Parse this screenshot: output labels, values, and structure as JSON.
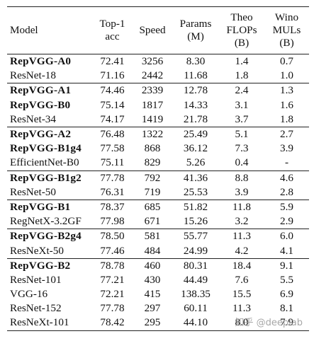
{
  "table": {
    "headers": {
      "model": "Model",
      "top1": [
        "Top-1",
        "acc"
      ],
      "speed": "Speed",
      "params": [
        "Params",
        "(M)"
      ],
      "flops": [
        "Theo",
        "FLOPs",
        "(B)"
      ],
      "mul": [
        "Wino",
        "MULs",
        "(B)"
      ]
    },
    "groups": [
      [
        {
          "model": "RepVGG-A0",
          "top1": "72.41",
          "speed": "3256",
          "params": "8.30",
          "flops": "1.4",
          "mul": "0.7",
          "bold": true
        },
        {
          "model": "ResNet-18",
          "top1": "71.16",
          "speed": "2442",
          "params": "11.68",
          "flops": "1.8",
          "mul": "1.0",
          "bold": false
        }
      ],
      [
        {
          "model": "RepVGG-A1",
          "top1": "74.46",
          "speed": "2339",
          "params": "12.78",
          "flops": "2.4",
          "mul": "1.3",
          "bold": true
        },
        {
          "model": "RepVGG-B0",
          "top1": "75.14",
          "speed": "1817",
          "params": "14.33",
          "flops": "3.1",
          "mul": "1.6",
          "bold": true
        },
        {
          "model": "ResNet-34",
          "top1": "74.17",
          "speed": "1419",
          "params": "21.78",
          "flops": "3.7",
          "mul": "1.8",
          "bold": false
        }
      ],
      [
        {
          "model": "RepVGG-A2",
          "top1": "76.48",
          "speed": "1322",
          "params": "25.49",
          "flops": "5.1",
          "mul": "2.7",
          "bold": true
        },
        {
          "model": "RepVGG-B1g4",
          "top1": "77.58",
          "speed": "868",
          "params": "36.12",
          "flops": "7.3",
          "mul": "3.9",
          "bold": true
        },
        {
          "model": "EfficientNet-B0",
          "top1": "75.11",
          "speed": "829",
          "params": "5.26",
          "flops": "0.4",
          "mul": "-",
          "bold": false
        }
      ],
      [
        {
          "model": "RepVGG-B1g2",
          "top1": "77.78",
          "speed": "792",
          "params": "41.36",
          "flops": "8.8",
          "mul": "4.6",
          "bold": true
        },
        {
          "model": "ResNet-50",
          "top1": "76.31",
          "speed": "719",
          "params": "25.53",
          "flops": "3.9",
          "mul": "2.8",
          "bold": false
        }
      ],
      [
        {
          "model": "RepVGG-B1",
          "top1": "78.37",
          "speed": "685",
          "params": "51.82",
          "flops": "11.8",
          "mul": "5.9",
          "bold": true
        },
        {
          "model": "RegNetX-3.2GF",
          "top1": "77.98",
          "speed": "671",
          "params": "15.26",
          "flops": "3.2",
          "mul": "2.9",
          "bold": false
        }
      ],
      [
        {
          "model": "RepVGG-B2g4",
          "top1": "78.50",
          "speed": "581",
          "params": "55.77",
          "flops": "11.3",
          "mul": "6.0",
          "bold": true
        },
        {
          "model": "ResNeXt-50",
          "top1": "77.46",
          "speed": "484",
          "params": "24.99",
          "flops": "4.2",
          "mul": "4.1",
          "bold": false
        }
      ],
      [
        {
          "model": "RepVGG-B2",
          "top1": "78.78",
          "speed": "460",
          "params": "80.31",
          "flops": "18.4",
          "mul": "9.1",
          "bold": true
        },
        {
          "model": "ResNet-101",
          "top1": "77.21",
          "speed": "430",
          "params": "44.49",
          "flops": "7.6",
          "mul": "5.5",
          "bold": false
        },
        {
          "model": "VGG-16",
          "top1": "72.21",
          "speed": "415",
          "params": "138.35",
          "flops": "15.5",
          "mul": "6.9",
          "bold": false
        },
        {
          "model": "ResNet-152",
          "top1": "77.78",
          "speed": "297",
          "params": "60.11",
          "flops": "11.3",
          "mul": "8.1",
          "bold": false
        },
        {
          "model": "ResNeXt-101",
          "top1": "78.42",
          "speed": "295",
          "params": "44.10",
          "flops": "8.0",
          "mul": "7.9",
          "bold": false
        }
      ]
    ]
  },
  "watermark": {
    "text": "知乎 @deeplab"
  }
}
